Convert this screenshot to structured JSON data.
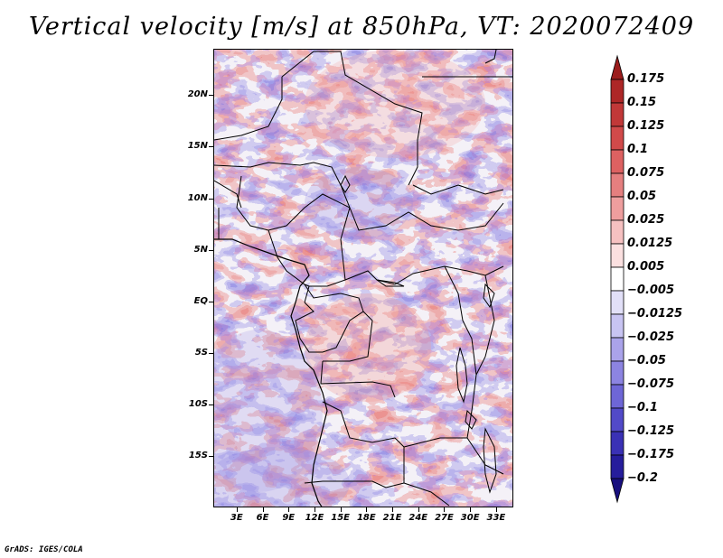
{
  "title": "Vertical velocity [m/s] at 850hPa, VT: 2020072409",
  "footer": "GrADS: IGES/COLA",
  "map": {
    "region": "Central Africa",
    "lat_labels": [
      "20N",
      "15N",
      "10N",
      "5N",
      "EQ",
      "5S",
      "10S",
      "15S"
    ],
    "lon_labels": [
      "3E",
      "6E",
      "9E",
      "12E",
      "15E",
      "18E",
      "21E",
      "24E",
      "27E",
      "30E",
      "33E"
    ],
    "lat_values": [
      20,
      15,
      10,
      5,
      0,
      -5,
      -10,
      -15
    ],
    "lon_values": [
      3,
      6,
      9,
      12,
      15,
      18,
      21,
      24,
      27,
      30,
      33
    ],
    "lat_range": [
      -20,
      24.5
    ],
    "lon_range": [
      0.3,
      35
    ]
  },
  "colorbar": {
    "labels": [
      "0.175",
      "0.15",
      "0.125",
      "0.1",
      "0.075",
      "0.05",
      "0.025",
      "0.0125",
      "0.005",
      "−0.005",
      "−0.0125",
      "−0.025",
      "−0.05",
      "−0.075",
      "−0.1",
      "−0.125",
      "−0.175",
      "−0.2"
    ],
    "colors": [
      "#9b1c1c",
      "#ad2727",
      "#c13838",
      "#d14a4a",
      "#dd6161",
      "#e57f7f",
      "#ee9e9e",
      "#f6c1c1",
      "#fbe0e0",
      "#ffffff",
      "#e2e0f8",
      "#c8c4f2",
      "#aaa3ea",
      "#8c84e1",
      "#6e66d6",
      "#524ac8",
      "#3a31b5",
      "#261d9c",
      "#180f7e"
    ]
  },
  "chart_data": {
    "type": "heatmap",
    "title": "Vertical velocity [m/s] at 850hPa, VT: 2020072409",
    "variable": "Vertical velocity",
    "units": "m/s",
    "level": "850hPa",
    "valid_time": "2020072409",
    "x_ticks": [
      "3E",
      "6E",
      "9E",
      "12E",
      "15E",
      "18E",
      "21E",
      "24E",
      "27E",
      "30E",
      "33E"
    ],
    "y_ticks": [
      "20N",
      "15N",
      "10N",
      "5N",
      "EQ",
      "5S",
      "10S",
      "15S"
    ],
    "contour_levels": [
      -0.2,
      -0.175,
      -0.125,
      -0.1,
      -0.075,
      -0.05,
      -0.025,
      -0.0125,
      -0.005,
      0.005,
      0.0125,
      0.025,
      0.05,
      0.075,
      0.1,
      0.125,
      0.15,
      0.175
    ]
  }
}
